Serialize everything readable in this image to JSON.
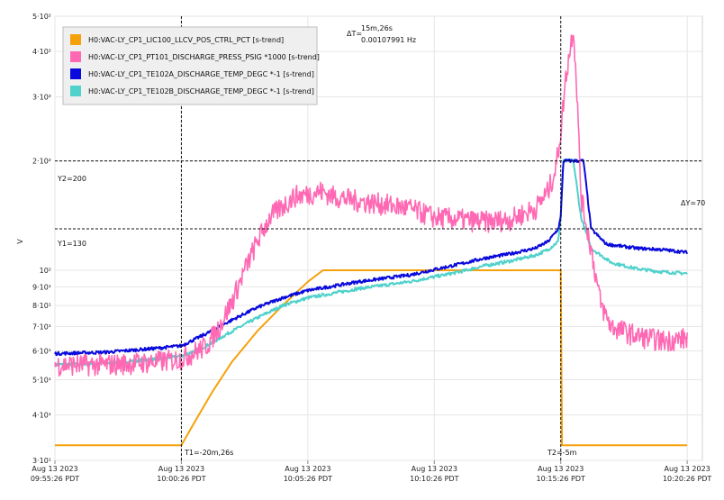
{
  "chart_data": {
    "type": "line",
    "ylabel": "V",
    "yscale": "log",
    "ylim": [
      30,
      500
    ],
    "grid": true,
    "legend_position": "top-left",
    "y_ticks": [
      {
        "value": 500,
        "label": "5·10²"
      },
      {
        "value": 400,
        "label": "4·10²"
      },
      {
        "value": 300,
        "label": "3·10²"
      },
      {
        "value": 200,
        "label": "2·10²"
      },
      {
        "value": 100,
        "label": "10²"
      },
      {
        "value": 90,
        "label": "9·10¹"
      },
      {
        "value": 80,
        "label": "8·10¹"
      },
      {
        "value": 70,
        "label": "7·10¹"
      },
      {
        "value": 60,
        "label": "6·10¹"
      },
      {
        "value": 50,
        "label": "5·10¹"
      },
      {
        "value": 40,
        "label": "4·10¹"
      },
      {
        "value": 30,
        "label": "3·10¹"
      }
    ],
    "x_unit": "minutes from 09:55:26",
    "xlim": [
      0,
      25.6
    ],
    "x_ticks": [
      {
        "value": 0,
        "date": "Aug 13 2023",
        "time": "09:55:26 PDT"
      },
      {
        "value": 5,
        "date": "Aug 13 2023",
        "time": "10:00:26 PDT"
      },
      {
        "value": 10,
        "date": "Aug 13 2023",
        "time": "10:05:26 PDT"
      },
      {
        "value": 15,
        "date": "Aug 13 2023",
        "time": "10:10:26 PDT"
      },
      {
        "value": 20,
        "date": "Aug 13 2023",
        "time": "10:15:26 PDT"
      },
      {
        "value": 25,
        "date": "Aug 13 2023",
        "time": "10:20:26 PDT"
      }
    ],
    "series": [
      {
        "name": "H0:VAC-LY_CP1_LIC100_LLCV_POS_CTRL_PCT [s-trend]",
        "color": "#f5a10a",
        "points": [
          [
            0,
            33
          ],
          [
            5,
            33
          ],
          [
            5.5,
            38
          ],
          [
            6.2,
            46
          ],
          [
            7,
            56
          ],
          [
            8,
            68
          ],
          [
            9,
            80
          ],
          [
            10,
            93
          ],
          [
            10.6,
            100
          ],
          [
            15,
            100
          ],
          [
            20,
            100
          ],
          [
            20.05,
            33
          ],
          [
            25,
            33
          ]
        ]
      },
      {
        "name": "H0:VAC-LY_CP1_PT101_DISCHARGE_PRESS_PSIG *1000 [s-trend]",
        "color": "#ff69b4",
        "noise": 0.07,
        "points": [
          [
            0,
            55
          ],
          [
            2,
            55
          ],
          [
            4,
            56
          ],
          [
            5,
            57
          ],
          [
            6,
            62
          ],
          [
            6.5,
            70
          ],
          [
            7,
            82
          ],
          [
            7.5,
            100
          ],
          [
            8,
            120
          ],
          [
            8.5,
            140
          ],
          [
            9,
            150
          ],
          [
            9.5,
            160
          ],
          [
            10,
            162
          ],
          [
            10.5,
            165
          ],
          [
            11,
            160
          ],
          [
            12,
            155
          ],
          [
            13,
            152
          ],
          [
            14,
            148
          ],
          [
            15,
            140
          ],
          [
            16,
            138
          ],
          [
            17,
            136
          ],
          [
            18,
            138
          ],
          [
            19,
            148
          ],
          [
            19.5,
            165
          ],
          [
            19.8,
            190
          ],
          [
            20,
            240
          ],
          [
            20.2,
            340
          ],
          [
            20.4,
            420
          ],
          [
            20.5,
            470
          ],
          [
            20.65,
            300
          ],
          [
            20.8,
            160
          ],
          [
            21,
            135
          ],
          [
            21.2,
            115
          ],
          [
            21.4,
            95
          ],
          [
            21.6,
            80
          ],
          [
            22,
            70
          ],
          [
            23,
            66
          ],
          [
            24,
            64
          ],
          [
            25,
            65
          ]
        ]
      },
      {
        "name": "H0:VAC-LY_CP1_TE102A_DISCHARGE_TEMP_DEGC *-1 [s-trend]",
        "color": "#0a0adc",
        "noise": 0.01,
        "points": [
          [
            0,
            59
          ],
          [
            2,
            59.5
          ],
          [
            4,
            61
          ],
          [
            5,
            62
          ],
          [
            6,
            67
          ],
          [
            7,
            73
          ],
          [
            8,
            79
          ],
          [
            9,
            84
          ],
          [
            10,
            88
          ],
          [
            12,
            93
          ],
          [
            14,
            97
          ],
          [
            16,
            104
          ],
          [
            17,
            108
          ],
          [
            18,
            111
          ],
          [
            19,
            115
          ],
          [
            19.5,
            120
          ],
          [
            19.9,
            130
          ],
          [
            20,
            140
          ],
          [
            20.1,
            200
          ],
          [
            20.9,
            200
          ],
          [
            21.2,
            130
          ],
          [
            21.8,
            118
          ],
          [
            23,
            115
          ],
          [
            24,
            114
          ],
          [
            25,
            112
          ]
        ]
      },
      {
        "name": "H0:VAC-LY_CP1_TE102B_DISCHARGE_TEMP_DEGC *-1 [s-trend]",
        "color": "#4fd1cc",
        "noise": 0.01,
        "points": [
          [
            0,
            55
          ],
          [
            2,
            55.5
          ],
          [
            4,
            57
          ],
          [
            5,
            58
          ],
          [
            6,
            62
          ],
          [
            7,
            68
          ],
          [
            8,
            74
          ],
          [
            9,
            80
          ],
          [
            10,
            84
          ],
          [
            12,
            89
          ],
          [
            14,
            93
          ],
          [
            16,
            99
          ],
          [
            17,
            103
          ],
          [
            18,
            106
          ],
          [
            19,
            110
          ],
          [
            19.5,
            114
          ],
          [
            19.9,
            120
          ],
          [
            20,
            140
          ],
          [
            20.1,
            200
          ],
          [
            20.5,
            200
          ],
          [
            20.8,
            140
          ],
          [
            21.2,
            115
          ],
          [
            22,
            105
          ],
          [
            23,
            101
          ],
          [
            24,
            99
          ],
          [
            25,
            98
          ]
        ]
      }
    ],
    "cursors": {
      "t1_label": "T1=-20m,26s",
      "t2_label": "T2=-5m",
      "t1_x": 5,
      "t2_x": 20,
      "y1_label": "Y1=130",
      "y2_label": "Y2=200",
      "y1_value": 130,
      "y2_value": 200,
      "delta_t_label": "ΔT=",
      "delta_t_value": "15m,26s",
      "delta_t_freq": "0.00107991 Hz",
      "delta_y_label": "ΔY=70"
    }
  }
}
